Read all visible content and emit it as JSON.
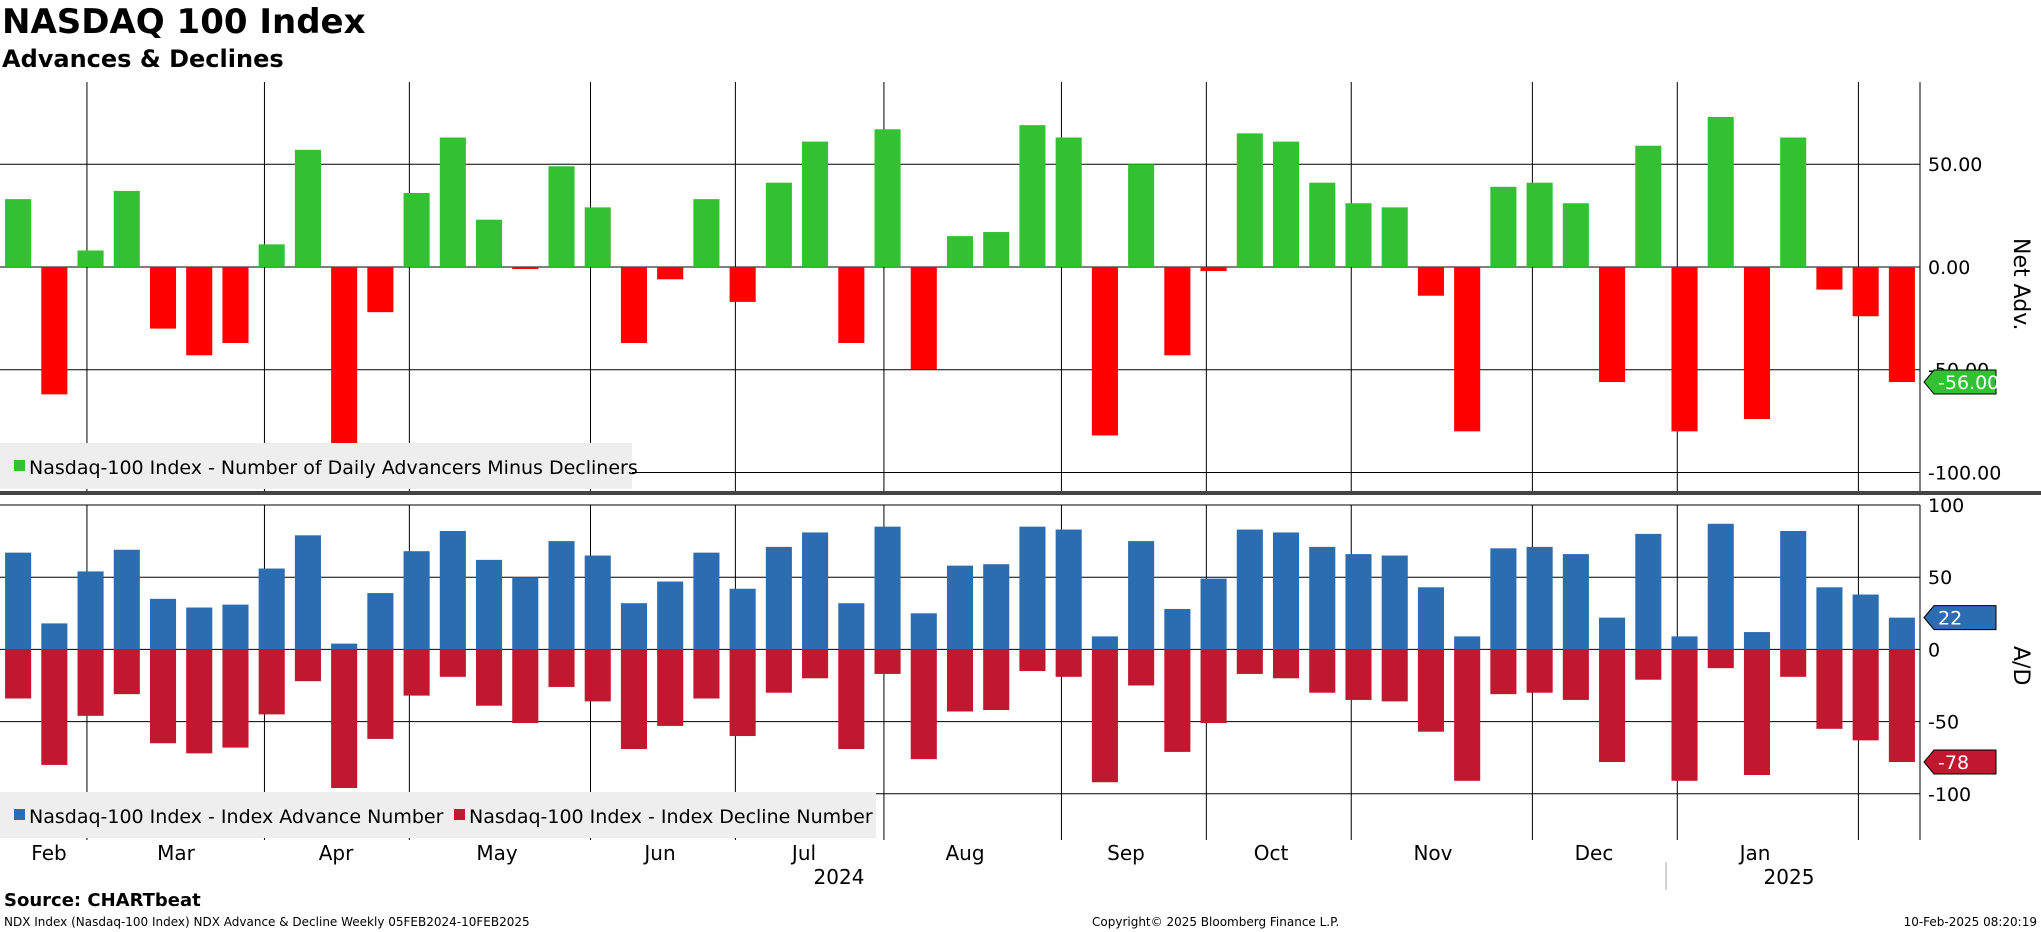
{
  "header": {
    "title": "NASDAQ 100 Index",
    "subtitle": "Advances & Declines"
  },
  "footer": {
    "source": "Source: CHARTbeat",
    "left_note": "NDX Index (Nasdaq-100 Index) NDX Advance & Decline  Weekly 05FEB2024-10FEB2025",
    "copyright": "Copyright© 2025 Bloomberg Finance L.P.",
    "timestamp": "10-Feb-2025 08:20:19"
  },
  "colors": {
    "positive": "#33c133",
    "negative": "#ff0000",
    "advance": "#2c6cb0",
    "decline": "#c1172f",
    "grid": "#000000"
  },
  "x_axis": {
    "month_labels": [
      "Feb",
      "Mar",
      "Apr",
      "May",
      "Jun",
      "Jul",
      "Aug",
      "Sep",
      "Oct",
      "Nov",
      "Dec",
      "Jan"
    ],
    "year_labels": [
      "2024",
      "2025"
    ]
  },
  "chart_data": [
    {
      "type": "bar",
      "title": "Net Adv.",
      "ylabel": "Net Adv.",
      "ylim": [
        -110,
        90
      ],
      "yticks": [
        50,
        0,
        -50,
        -100
      ],
      "ytick_labels": [
        "50.00",
        "0.00",
        "-50.00",
        "-100.00"
      ],
      "legend": [
        "Nasdaq-100 Index - Number of Daily Advancers Minus Decliners"
      ],
      "last_value_label": "-56.00",
      "values": [
        33,
        -62,
        8,
        37,
        -30,
        -43,
        -37,
        11,
        57,
        -92,
        -22,
        36,
        63,
        23,
        -1,
        49,
        29,
        -37,
        -6,
        33,
        -17,
        41,
        61,
        -37,
        67,
        -50,
        15,
        17,
        69,
        63,
        -82,
        50,
        -43,
        -2,
        65,
        61,
        41,
        31,
        29,
        -14,
        -80,
        39,
        41,
        31,
        -56,
        59,
        -80,
        73,
        -74,
        63,
        -11,
        -24,
        -56
      ]
    },
    {
      "type": "bar",
      "title": "A/D",
      "ylabel": "A/D",
      "ylim": [
        -132,
        100
      ],
      "yticks": [
        100,
        50,
        0,
        -50,
        -100
      ],
      "ytick_labels": [
        "100",
        "50",
        "0",
        "-50",
        "-100"
      ],
      "legend": [
        "Nasdaq-100 Index - Index Advance Number",
        "Nasdaq-100 Index - Index Decline Number"
      ],
      "last_advance_label": "22",
      "last_decline_label": "-78",
      "series": [
        {
          "name": "Nasdaq-100 Index - Index Advance Number",
          "values": [
            67,
            18,
            54,
            69,
            35,
            29,
            31,
            56,
            79,
            4,
            39,
            68,
            82,
            62,
            50,
            75,
            65,
            32,
            47,
            67,
            42,
            71,
            81,
            32,
            85,
            25,
            58,
            59,
            85,
            83,
            9,
            75,
            28,
            49,
            83,
            81,
            71,
            66,
            65,
            43,
            9,
            70,
            71,
            66,
            22,
            80,
            9,
            87,
            12,
            82,
            43,
            38,
            22
          ]
        },
        {
          "name": "Nasdaq-100 Index - Index Decline Number",
          "values": [
            -34,
            -80,
            -46,
            -31,
            -65,
            -72,
            -68,
            -45,
            -22,
            -96,
            -62,
            -32,
            -19,
            -39,
            -51,
            -26,
            -36,
            -69,
            -53,
            -34,
            -60,
            -30,
            -20,
            -69,
            -17,
            -76,
            -43,
            -42,
            -15,
            -19,
            -92,
            -25,
            -71,
            -51,
            -17,
            -20,
            -30,
            -35,
            -36,
            -57,
            -91,
            -31,
            -30,
            -35,
            -78,
            -21,
            -91,
            -13,
            -87,
            -19,
            -55,
            -63,
            -78
          ]
        }
      ]
    }
  ]
}
